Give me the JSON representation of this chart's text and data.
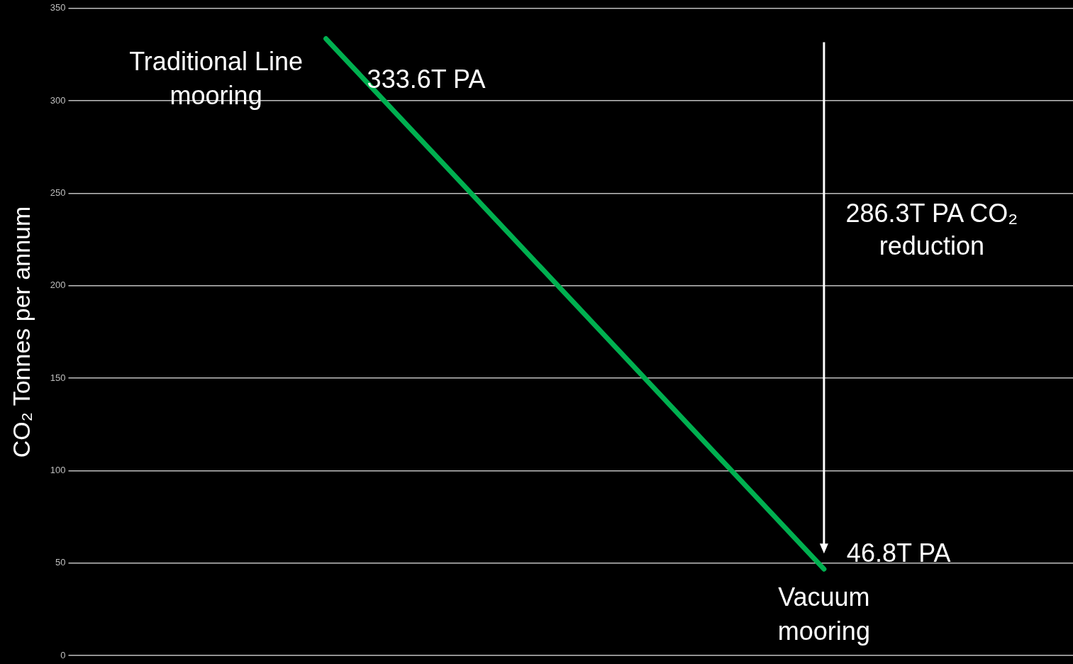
{
  "chart_data": {
    "type": "line",
    "ylabel": "CO₂ Tonnes per annum",
    "categories": [
      null,
      null
    ],
    "series": [
      {
        "color": "#00b050",
        "values": [
          333.6,
          46.8
        ]
      }
    ],
    "value_labels": [
      "333.6T PA",
      "46.8T PA"
    ],
    "annotations": [
      "Traditional Line mooring",
      "Vacuum mooring",
      "286.3T PA CO₂ reduction"
    ],
    "ylim": [
      0,
      350
    ],
    "yticks": [
      0,
      50,
      100,
      150,
      200,
      250,
      300,
      350
    ],
    "grid": "y",
    "tick_labels": "y",
    "legend": false,
    "marker": "none",
    "line_style": "solid"
  }
}
